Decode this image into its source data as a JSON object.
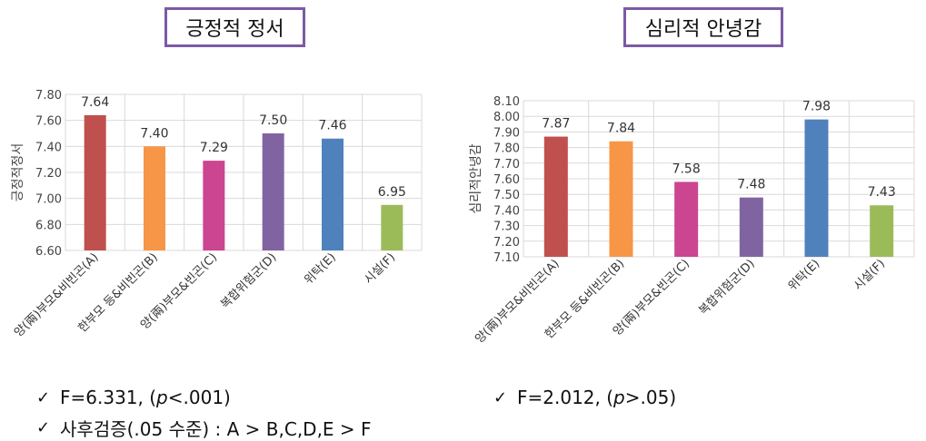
{
  "chart_data": [
    {
      "type": "bar",
      "title": "긍정적 정서",
      "ylabel": "긍정적정서",
      "categories": [
        "양(兩)부모&비빈곤(A)",
        "한부모 등&비빈곤(B)",
        "양(兩)부모&빈곤(C)",
        "복합위험군(D)",
        "위탁(E)",
        "시설(F)"
      ],
      "values": [
        7.64,
        7.4,
        7.29,
        7.5,
        7.46,
        6.95
      ],
      "value_labels": [
        "7.64",
        "7.40",
        "7.29",
        "7.50",
        "7.46",
        "6.95"
      ],
      "colors": [
        "#c0504d",
        "#f79646",
        "#cc4591",
        "#8064a2",
        "#4f81bd",
        "#9bbb59"
      ],
      "ylim": [
        6.6,
        7.8
      ],
      "yticks": [
        "6.60",
        "6.80",
        "7.00",
        "7.20",
        "7.40",
        "7.60",
        "7.80"
      ],
      "grid": true
    },
    {
      "type": "bar",
      "title": "심리적 안녕감",
      "ylabel": "심리적안녕감",
      "categories": [
        "양(兩)부모&비빈곤(A)",
        "한부모 등&비빈곤(B)",
        "양(兩)부모&빈곤(C)",
        "복합위험군(D)",
        "위탁(E)",
        "시설(F)"
      ],
      "values": [
        7.87,
        7.84,
        7.58,
        7.48,
        7.98,
        7.43
      ],
      "value_labels": [
        "7.87",
        "7.84",
        "7.58",
        "7.48",
        "7.98",
        "7.43"
      ],
      "colors": [
        "#c0504d",
        "#f79646",
        "#cc4591",
        "#8064a2",
        "#4f81bd",
        "#9bbb59"
      ],
      "ylim": [
        7.1,
        8.1
      ],
      "yticks": [
        "7.10",
        "7.20",
        "7.30",
        "7.40",
        "7.50",
        "7.60",
        "7.70",
        "7.80",
        "7.90",
        "8.00",
        "8.10"
      ],
      "grid": true
    }
  ],
  "stats": {
    "check_glyph": "✓",
    "left_1": {
      "pre": "F=6.331, (",
      "p": "p",
      "post": "<.001)"
    },
    "left_2": "사후검증(.05 수준) : A > B,C,D,E > F",
    "right_1": {
      "pre": "F=2.012, (",
      "p": "p",
      "post": ">.05)"
    }
  }
}
